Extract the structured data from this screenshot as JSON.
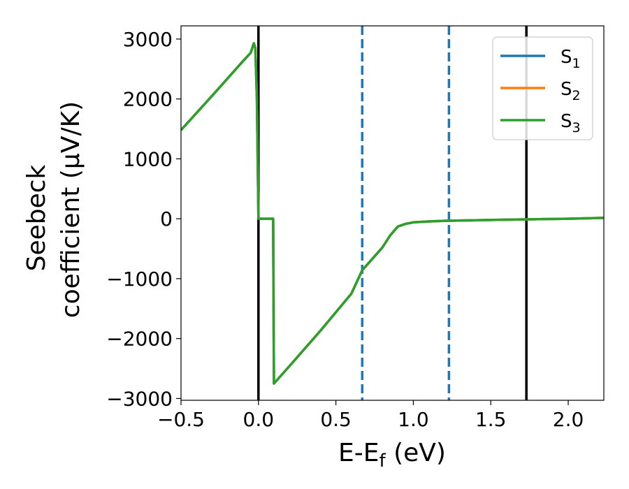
{
  "chart_data": {
    "type": "line",
    "xlabel": "E-E_f (eV)",
    "ylabel_line1": "Seebeck",
    "ylabel_line2": "coefficient  (μV/K)",
    "xlim": [
      -0.5,
      2.23
    ],
    "ylim": [
      -3030,
      3220
    ],
    "x_ticks": [
      -0.5,
      0.0,
      0.5,
      1.0,
      1.5,
      2.0
    ],
    "x_tick_labels": [
      "−0.5",
      "0.0",
      "0.5",
      "1.0",
      "1.5",
      "2.0"
    ],
    "y_ticks": [
      -3000,
      -2000,
      -1000,
      0,
      1000,
      2000,
      3000
    ],
    "y_tick_labels": [
      "−3000",
      "−2000",
      "−1000",
      "0",
      "1000",
      "2000",
      "3000"
    ],
    "grid": false,
    "legend_position": "top-right",
    "series": [
      {
        "name": "S₁",
        "legend_main": "S",
        "legend_sub": "1",
        "color": "#1f77b4",
        "x": [
          -0.5,
          -0.3,
          -0.1,
          -0.05,
          -0.03,
          -0.02,
          -0.01,
          0.0,
          0.01,
          0.09,
          0.095,
          0.1,
          0.2,
          0.4,
          0.6,
          0.67,
          0.8,
          0.85,
          0.9,
          0.95,
          1.0,
          1.1,
          1.2,
          1.5,
          1.73,
          2.0,
          2.23
        ],
        "y": [
          1480,
          2050,
          2630,
          2770,
          2930,
          2850,
          2000,
          0,
          0,
          0,
          0,
          -2750,
          -2460,
          -1870,
          -1250,
          -860,
          -480,
          -280,
          -130,
          -85,
          -60,
          -45,
          -35,
          -20,
          -10,
          0,
          15
        ]
      },
      {
        "name": "S₂",
        "legend_main": "S",
        "legend_sub": "2",
        "color": "#ff7f0e",
        "x": [
          -0.5,
          -0.3,
          -0.1,
          -0.05,
          -0.03,
          -0.02,
          -0.01,
          0.0,
          0.01,
          0.09,
          0.095,
          0.1,
          0.2,
          0.4,
          0.6,
          0.67,
          0.8,
          0.85,
          0.9,
          0.95,
          1.0,
          1.1,
          1.2,
          1.5,
          1.73,
          2.0,
          2.23
        ],
        "y": [
          1480,
          2050,
          2630,
          2770,
          2930,
          2850,
          2000,
          0,
          0,
          0,
          0,
          -2750,
          -2460,
          -1870,
          -1250,
          -860,
          -480,
          -280,
          -130,
          -85,
          -60,
          -45,
          -35,
          -20,
          -10,
          0,
          15
        ]
      },
      {
        "name": "S₃",
        "legend_main": "S",
        "legend_sub": "3",
        "color": "#2ca02c",
        "x": [
          -0.5,
          -0.3,
          -0.1,
          -0.05,
          -0.03,
          -0.02,
          -0.01,
          0.0,
          0.01,
          0.09,
          0.095,
          0.1,
          0.2,
          0.4,
          0.6,
          0.67,
          0.8,
          0.85,
          0.9,
          0.95,
          1.0,
          1.1,
          1.2,
          1.5,
          1.73,
          2.0,
          2.23
        ],
        "y": [
          1480,
          2050,
          2630,
          2770,
          2930,
          2850,
          2000,
          0,
          0,
          0,
          0,
          -2750,
          -2460,
          -1870,
          -1250,
          -860,
          -480,
          -280,
          -130,
          -85,
          -60,
          -45,
          -35,
          -20,
          -10,
          0,
          15
        ]
      }
    ],
    "vertical_lines": [
      {
        "x": 0.0,
        "style": "solid",
        "color": "#000000"
      },
      {
        "x": 0.67,
        "style": "dashed",
        "color": "#1f77b4"
      },
      {
        "x": 1.23,
        "style": "dashed",
        "color": "#1f77b4"
      },
      {
        "x": 1.73,
        "style": "solid",
        "color": "#000000"
      }
    ]
  }
}
